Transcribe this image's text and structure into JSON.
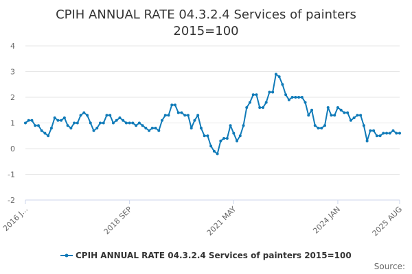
{
  "chart_data": {
    "type": "line",
    "title_lines": [
      "CPIH ANNUAL RATE 04.3.2.4 Services of painters",
      "2015=100"
    ],
    "x_start": "2016 JAN",
    "x_tick_labels": [
      {
        "label": "2016 J...",
        "index": 0
      },
      {
        "label": "2018 SEP",
        "index": 32
      },
      {
        "label": "2021 MAY",
        "index": 64
      },
      {
        "label": "2024 JAN",
        "index": 96
      },
      {
        "label": "2025 AUG",
        "index": 115
      }
    ],
    "ylim": [
      -2,
      4
    ],
    "y_ticks": [
      -2,
      -1,
      0,
      1,
      2,
      3,
      4
    ],
    "grid": true,
    "series": [
      {
        "name": "CPIH ANNUAL RATE 04.3.2.4 Services of painters 2015=100",
        "color": "#0f7ab8",
        "values": [
          1.0,
          1.1,
          1.1,
          0.9,
          0.9,
          0.7,
          0.6,
          0.5,
          0.8,
          1.2,
          1.1,
          1.1,
          1.2,
          0.9,
          0.8,
          1.0,
          1.0,
          1.3,
          1.4,
          1.3,
          1.0,
          0.7,
          0.8,
          1.0,
          1.0,
          1.3,
          1.3,
          1.0,
          1.1,
          1.2,
          1.1,
          1.0,
          1.0,
          1.0,
          0.9,
          1.0,
          0.9,
          0.8,
          0.7,
          0.8,
          0.8,
          0.7,
          1.1,
          1.3,
          1.3,
          1.7,
          1.7,
          1.4,
          1.4,
          1.3,
          1.3,
          0.8,
          1.1,
          1.3,
          0.8,
          0.5,
          0.5,
          0.1,
          -0.1,
          -0.2,
          0.3,
          0.4,
          0.4,
          0.9,
          0.6,
          0.3,
          0.5,
          0.9,
          1.6,
          1.8,
          2.1,
          2.1,
          1.6,
          1.6,
          1.8,
          2.2,
          2.2,
          2.9,
          2.8,
          2.5,
          2.1,
          1.9,
          2.0,
          2.0,
          2.0,
          2.0,
          1.8,
          1.3,
          1.5,
          0.9,
          0.8,
          0.8,
          0.9,
          1.6,
          1.3,
          1.3,
          1.6,
          1.5,
          1.4,
          1.4,
          1.1,
          1.2,
          1.3,
          1.3,
          0.9,
          0.3,
          0.7,
          0.7,
          0.5,
          0.5,
          0.6,
          0.6,
          0.6,
          0.7,
          0.6,
          0.6
        ]
      }
    ],
    "legend_position": "bottom-center",
    "credit": "Source:"
  }
}
